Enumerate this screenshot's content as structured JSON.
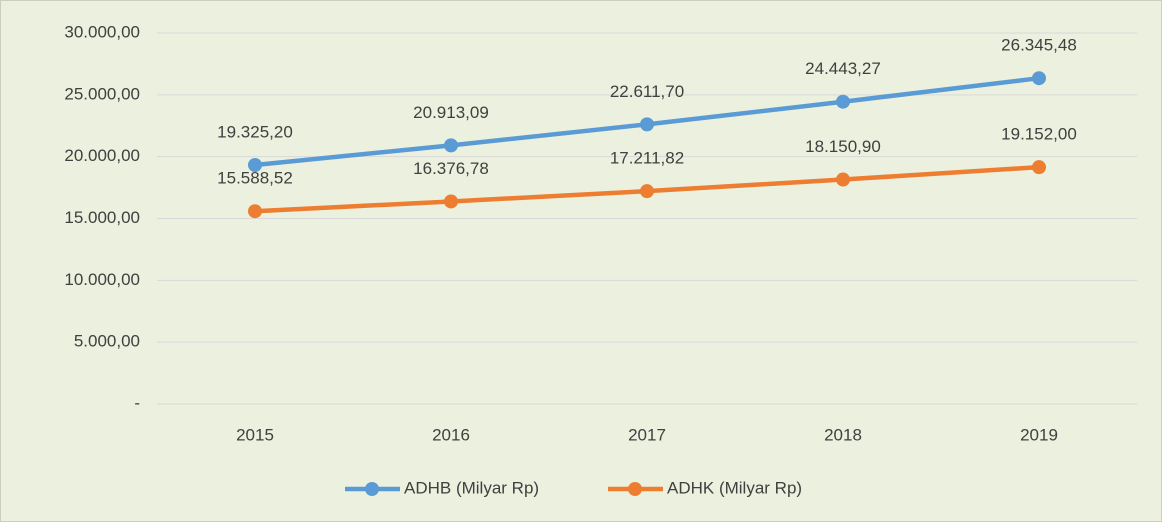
{
  "chart_data": {
    "type": "line",
    "categories": [
      "2015",
      "2016",
      "2017",
      "2018",
      "2019"
    ],
    "series": [
      {
        "name": "ADHB (Milyar Rp)",
        "color": "#5b9bd5",
        "values": [
          19325.2,
          20913.09,
          22611.7,
          24443.27,
          26345.48
        ],
        "value_labels": [
          "19.325,20",
          "20.913,09",
          "22.611,70",
          "24.443,27",
          "26.345,48"
        ]
      },
      {
        "name": "ADHK (Milyar Rp)",
        "color": "#ed7d31",
        "values": [
          15588.52,
          16376.78,
          17211.82,
          18150.9,
          19152.0
        ],
        "value_labels": [
          "15.588,52",
          "16.376,78",
          "17.211,82",
          "18.150,90",
          "19.152,00"
        ]
      }
    ],
    "ylim": [
      0,
      30000
    ],
    "yticks": [
      {
        "value": 0,
        "label": "-"
      },
      {
        "value": 5000,
        "label": "5.000,00"
      },
      {
        "value": 10000,
        "label": "10.000,00"
      },
      {
        "value": 15000,
        "label": "15.000,00"
      },
      {
        "value": 20000,
        "label": "20.000,00"
      },
      {
        "value": 25000,
        "label": "25.000,00"
      },
      {
        "value": 30000,
        "label": "30.000,00"
      }
    ],
    "grid": true,
    "legend": "bottom"
  }
}
